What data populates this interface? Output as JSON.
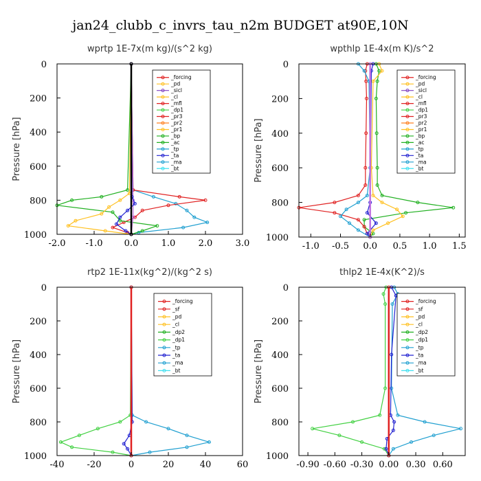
{
  "figure": {
    "title": "jan24_clubb_c_invrs_tau_n2m  BUDGET at90E,10N"
  },
  "chart_data": [
    {
      "type": "line",
      "title": "wprtp  1E-7x(m kg)/(s^2 kg)",
      "ylabel": "Pressure [hPa]",
      "xlim": [
        -2.0,
        3.0
      ],
      "xticks": [
        "-2.0",
        "-1.0",
        "0.0",
        "1.0",
        "2.0",
        "3.0"
      ],
      "xtick_values": [
        -2,
        -1,
        0,
        1,
        2,
        3
      ],
      "ylim": [
        1000,
        0
      ],
      "yticks": [
        "0",
        "200",
        "400",
        "600",
        "800",
        "1000"
      ],
      "ytick_values": [
        0,
        200,
        400,
        600,
        800,
        1000
      ],
      "legend": [
        "_forcing",
        "_pd",
        "_sicl",
        "_cl",
        "_mfl",
        "_dp1",
        "_pr3",
        "_pr2",
        "_pr1",
        "_bp",
        "_ac",
        "_tp",
        "_ta",
        "_ma",
        "_bt"
      ],
      "series": [
        {
          "name": "_tp",
          "color": "#1f9fd0",
          "p": [
            0,
            740,
            780,
            820,
            860,
            900,
            930,
            960,
            990,
            1000
          ],
          "v": [
            0,
            0.05,
            0.6,
            1.2,
            1.5,
            1.7,
            2.05,
            1.4,
            0.2,
            0
          ]
        },
        {
          "name": "_pr3",
          "color": "#e02020",
          "p": [
            0,
            740,
            780,
            800,
            830,
            860,
            900,
            930,
            960,
            990,
            1000
          ],
          "v": [
            0,
            0.05,
            1.3,
            2.0,
            1.0,
            0.3,
            0.1,
            -0.2,
            -0.5,
            -0.1,
            0
          ]
        },
        {
          "name": "_ac",
          "color": "#20b020",
          "p": [
            0,
            740,
            780,
            800,
            830,
            870,
            920,
            950,
            980,
            1000
          ],
          "v": [
            0,
            -0.1,
            -0.8,
            -1.6,
            -2.0,
            -0.5,
            -0.3,
            0.7,
            0.3,
            0
          ]
        },
        {
          "name": "_pr1",
          "color": "#ffc020",
          "p": [
            0,
            760,
            800,
            840,
            880,
            920,
            950,
            980,
            1000
          ],
          "v": [
            0,
            -0.05,
            -0.3,
            -0.6,
            -0.8,
            -1.5,
            -1.7,
            -0.7,
            0
          ]
        },
        {
          "name": "_pd",
          "color": "#c070e0",
          "p": [
            0,
            800,
            900,
            1000
          ],
          "v": [
            0,
            0.05,
            0.05,
            0
          ]
        },
        {
          "name": "_ta",
          "color": "#2020d0",
          "p": [
            0,
            780,
            820,
            860,
            900,
            940,
            980,
            1000
          ],
          "v": [
            0,
            0.02,
            0.1,
            -0.1,
            -0.3,
            -0.4,
            -0.15,
            0
          ]
        },
        {
          "name": "_forcing",
          "color": "#000000",
          "p": [
            0,
            1000
          ],
          "v": [
            0,
            0
          ]
        }
      ]
    },
    {
      "type": "line",
      "title": "wpthlp  1E-4x(m K)/s^2",
      "ylabel": "Pressure [hPa]",
      "xlim": [
        -1.2,
        1.6
      ],
      "xticks": [
        "-1.0",
        "-0.5",
        "0.0",
        "0.5",
        "1.0",
        "1.5"
      ],
      "xtick_values": [
        -1,
        -0.5,
        0,
        0.5,
        1,
        1.5
      ],
      "ylim": [
        1000,
        0
      ],
      "yticks": [
        "0",
        "200",
        "400",
        "600",
        "800",
        "1000"
      ],
      "ytick_values": [
        0,
        200,
        400,
        600,
        800,
        1000
      ],
      "legend": [
        "_forcing",
        "_pd",
        "_sicl",
        "_cl",
        "_mfl",
        "_dp1",
        "_pr3",
        "_pr2",
        "_pr1",
        "_bp",
        "_ac",
        "_tp",
        "_ta",
        "_ma",
        "_bt"
      ],
      "series": [
        {
          "name": "_ac",
          "color": "#20b020",
          "p": [
            0,
            40,
            100,
            200,
            400,
            600,
            700,
            760,
            800,
            830,
            860,
            900,
            940,
            980,
            1000
          ],
          "v": [
            0.1,
            0.15,
            0.12,
            0.1,
            0.11,
            0.12,
            0.12,
            0.2,
            0.8,
            1.4,
            0.6,
            -0.1,
            -0.1,
            0.05,
            0
          ]
        },
        {
          "name": "_pr3",
          "color": "#e02020",
          "p": [
            0,
            40,
            100,
            200,
            400,
            600,
            700,
            760,
            800,
            830,
            860,
            900,
            940,
            980,
            1000
          ],
          "v": [
            -0.05,
            -0.08,
            -0.07,
            -0.06,
            -0.07,
            -0.08,
            -0.08,
            -0.2,
            -0.6,
            -1.2,
            -0.6,
            -0.2,
            -0.1,
            -0.05,
            0
          ]
        },
        {
          "name": "_tp",
          "color": "#1f9fd0",
          "p": [
            0,
            40,
            100,
            600,
            760,
            800,
            840,
            880,
            920,
            960,
            1000
          ],
          "v": [
            -0.2,
            -0.1,
            -0.02,
            0,
            -0.05,
            -0.2,
            -0.4,
            -0.5,
            -0.35,
            -0.2,
            0
          ]
        },
        {
          "name": "_pr1",
          "color": "#ffc020",
          "p": [
            0,
            40,
            100,
            600,
            760,
            800,
            840,
            880,
            920,
            960,
            1000
          ],
          "v": [
            0.15,
            0.2,
            0.05,
            0.02,
            0.05,
            0.2,
            0.45,
            0.55,
            0.3,
            0.05,
            0
          ]
        },
        {
          "name": "_ta",
          "color": "#2020d0",
          "p": [
            0,
            40,
            800,
            860,
            920,
            980,
            1000
          ],
          "v": [
            0.05,
            0.02,
            0,
            -0.05,
            0.1,
            -0.05,
            0
          ]
        },
        {
          "name": "_pd",
          "color": "#c070e0",
          "p": [
            0,
            1000
          ],
          "v": [
            0,
            0
          ]
        }
      ]
    },
    {
      "type": "line",
      "title": "rtp2  1E-11x(kg^2)/(kg^2 s)",
      "ylabel": "Pressure [hPa]",
      "xlim": [
        -40,
        60
      ],
      "xticks": [
        "-40",
        "-20",
        "0",
        "20",
        "40",
        "60"
      ],
      "xtick_values": [
        -40,
        -20,
        0,
        20,
        40,
        60
      ],
      "ylim": [
        1000,
        0
      ],
      "yticks": [
        "0",
        "200",
        "400",
        "600",
        "800",
        "1000"
      ],
      "ytick_values": [
        0,
        200,
        400,
        600,
        800,
        1000
      ],
      "legend": [
        "_forcing",
        "_sf",
        "_pd",
        "_cl",
        "_dp2",
        "_dp1",
        "_tp",
        "_ta",
        "_ma",
        "_bt"
      ],
      "series": [
        {
          "name": "_tp",
          "color": "#1f9fd0",
          "p": [
            0,
            760,
            800,
            840,
            880,
            920,
            950,
            980,
            1000
          ],
          "v": [
            0,
            0.5,
            8,
            20,
            30,
            42,
            30,
            10,
            0
          ]
        },
        {
          "name": "_dp1",
          "color": "#40d040",
          "p": [
            0,
            760,
            800,
            840,
            880,
            920,
            950,
            980,
            1000
          ],
          "v": [
            0,
            -0.5,
            -6,
            -18,
            -28,
            -38,
            -32,
            -10,
            0
          ]
        },
        {
          "name": "_ta",
          "color": "#2020d0",
          "p": [
            0,
            800,
            880,
            930,
            960,
            1000
          ],
          "v": [
            0,
            0.5,
            -1,
            -4,
            -2,
            0
          ]
        },
        {
          "name": "_forcing",
          "color": "#e02020",
          "p": [
            0,
            1000
          ],
          "v": [
            0,
            0
          ]
        }
      ]
    },
    {
      "type": "line",
      "title": "thlp2  1E-4x(K^2)/s",
      "ylabel": "Pressure [hPa]",
      "xlim": [
        -1.0,
        0.85
      ],
      "xticks": [
        "-0.90",
        "-0.60",
        "-0.30",
        "0.00",
        "0.30",
        "0.60"
      ],
      "xtick_values": [
        -0.9,
        -0.6,
        -0.3,
        0,
        0.3,
        0.6
      ],
      "ylim": [
        1000,
        0
      ],
      "yticks": [
        "0",
        "200",
        "400",
        "600",
        "800",
        "1000"
      ],
      "ytick_values": [
        0,
        200,
        400,
        600,
        800,
        1000
      ],
      "legend": [
        "_forcing",
        "_sf",
        "_pd",
        "_cl",
        "_dp2",
        "_dp1",
        "_tp",
        "_ta",
        "_ma",
        "_bt"
      ],
      "series": [
        {
          "name": "_tp",
          "color": "#1f9fd0",
          "p": [
            0,
            40,
            100,
            600,
            760,
            800,
            840,
            880,
            920,
            960,
            1000
          ],
          "v": [
            0.06,
            0.1,
            0.04,
            0.03,
            0.1,
            0.4,
            0.8,
            0.5,
            0.25,
            0.05,
            0
          ]
        },
        {
          "name": "_dp1",
          "color": "#40d040",
          "p": [
            0,
            40,
            100,
            600,
            760,
            800,
            840,
            880,
            920,
            960,
            1000
          ],
          "v": [
            -0.03,
            -0.06,
            -0.04,
            -0.04,
            -0.1,
            -0.4,
            -0.85,
            -0.55,
            -0.3,
            -0.05,
            0
          ]
        },
        {
          "name": "_ta",
          "color": "#2020d0",
          "p": [
            0,
            50,
            400,
            760,
            800,
            850,
            900,
            960,
            1000
          ],
          "v": [
            0.03,
            0.08,
            0.03,
            0.02,
            0.06,
            0.05,
            -0.02,
            -0.03,
            0
          ]
        },
        {
          "name": "_forcing",
          "color": "#e02020",
          "p": [
            0,
            1000
          ],
          "v": [
            0,
            0
          ]
        }
      ]
    }
  ],
  "legend_colors": {
    "_forcing": "#e02020",
    "_sf": "#e02020",
    "_pd": "#ffc020",
    "_sicl": "#8040c0",
    "_cl": "#ffc020",
    "_mfl": "#e02020",
    "_dp1": "#40d040",
    "_dp2": "#20b020",
    "_pr3": "#e02020",
    "_pr2": "#ff8020",
    "_pr1": "#ffc020",
    "_bp": "#20b020",
    "_ac": "#20b020",
    "_tp": "#1f9fd0",
    "_ta": "#2020d0",
    "_ma": "#1f9fd0",
    "_bt": "#40e0f0"
  }
}
